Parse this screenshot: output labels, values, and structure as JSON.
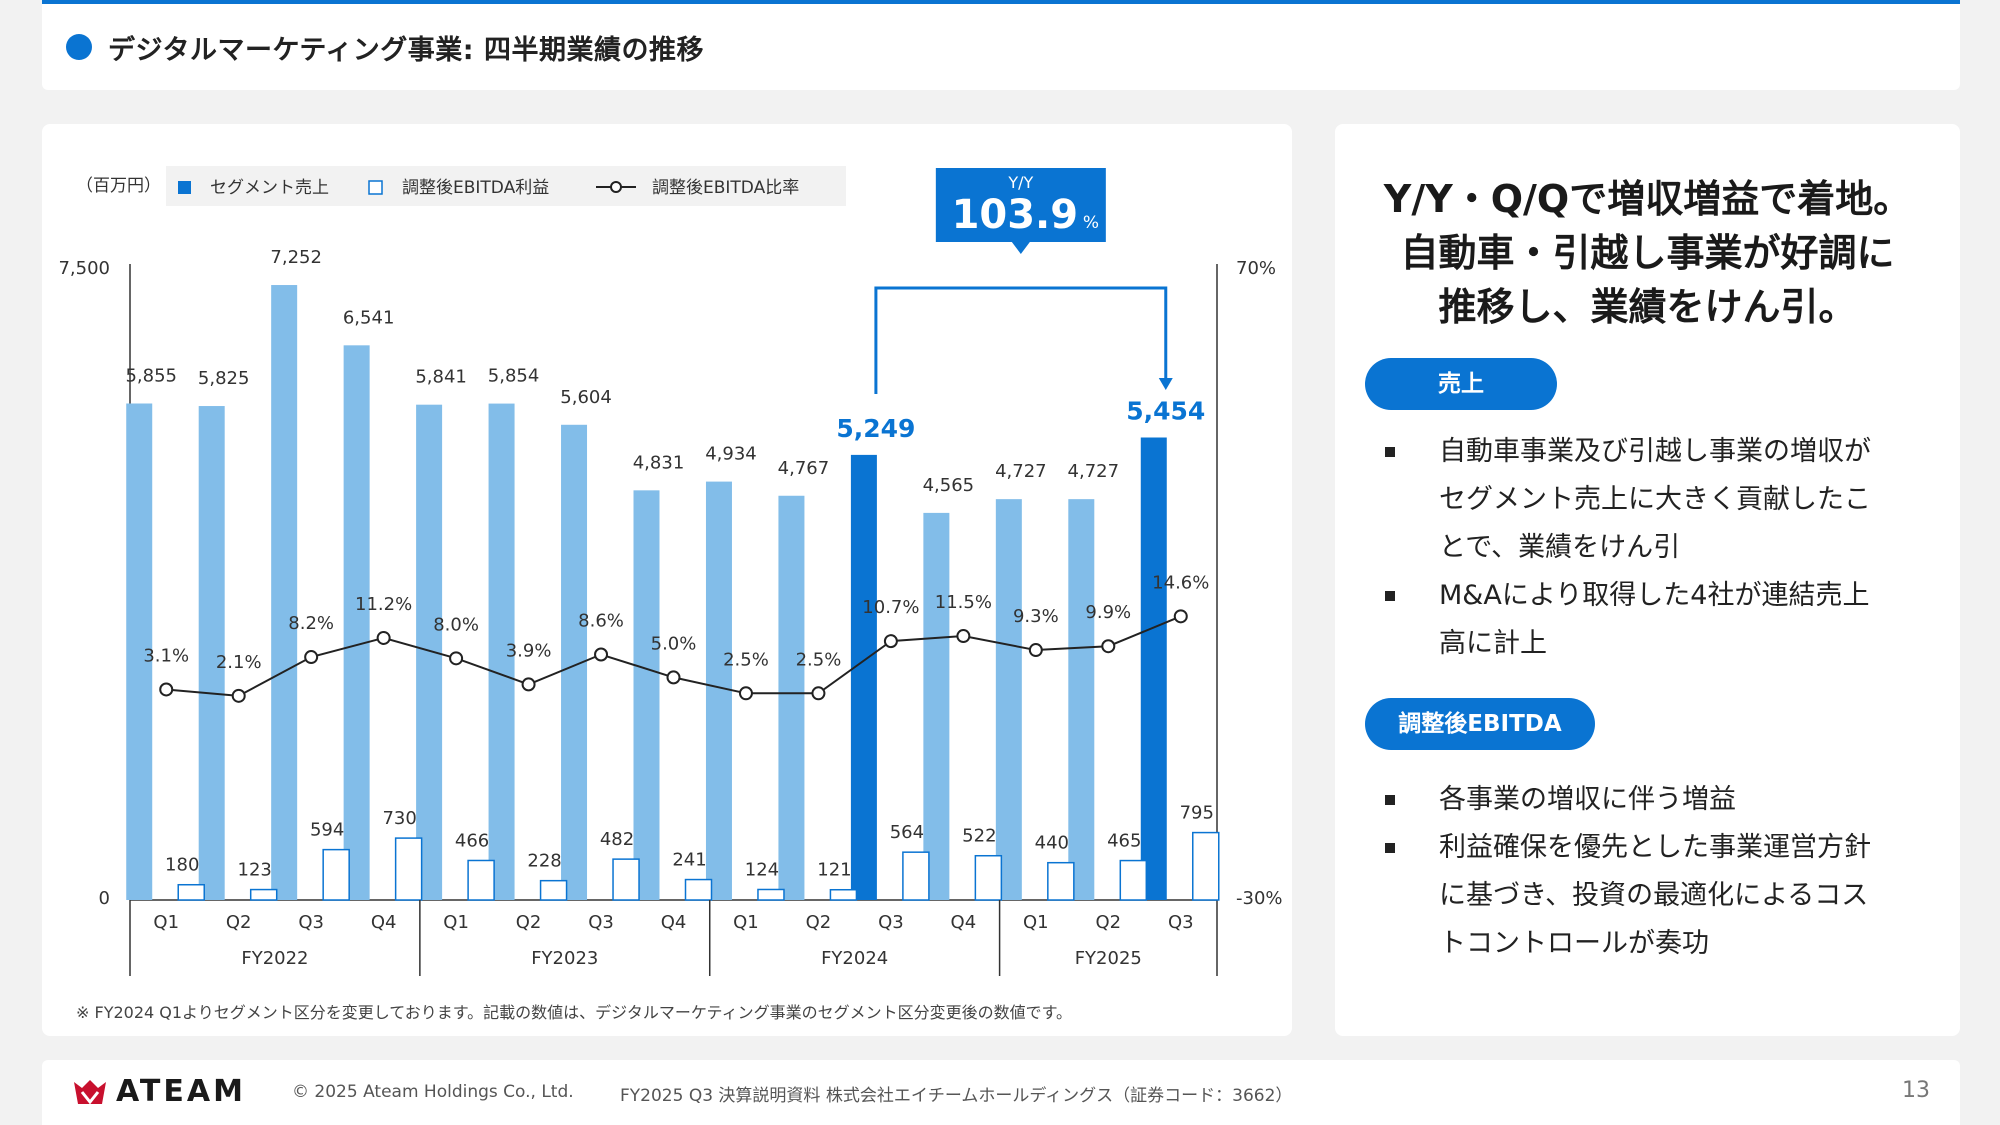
{
  "header": {
    "title": "デジタルマーケティング事業: 四半期業績の推移"
  },
  "chart_data": {
    "type": "bar",
    "unit_label": "（百万円）",
    "legend": [
      "セグメント売上",
      "調整後EBITDA利益",
      "調整後EBITDA比率"
    ],
    "quarters": [
      "Q1",
      "Q2",
      "Q3",
      "Q4",
      "Q1",
      "Q2",
      "Q3",
      "Q4",
      "Q1",
      "Q2",
      "Q3",
      "Q4",
      "Q1",
      "Q2",
      "Q3"
    ],
    "fiscal_years": [
      {
        "label": "FY2022",
        "count": 4
      },
      {
        "label": "FY2023",
        "count": 4
      },
      {
        "label": "FY2024",
        "count": 4
      },
      {
        "label": "FY2025",
        "count": 3
      }
    ],
    "series": [
      {
        "name": "セグメント売上",
        "values": [
          5855,
          5825,
          7252,
          6541,
          5841,
          5854,
          5604,
          4831,
          4934,
          4767,
          5249,
          4565,
          4727,
          4727,
          5454
        ],
        "labels": [
          "5,855",
          "5,825",
          "7,252",
          "6,541",
          "5,841",
          "5,854",
          "5,604",
          "4,831",
          "4,934",
          "4,767",
          "5,249",
          "4,565",
          "4,727",
          "4,727",
          "5,454"
        ],
        "highlight": [
          10,
          14
        ]
      },
      {
        "name": "調整後EBITDA利益",
        "values": [
          180,
          123,
          594,
          730,
          466,
          228,
          482,
          241,
          124,
          121,
          564,
          522,
          440,
          465,
          795
        ]
      },
      {
        "name": "調整後EBITDA比率",
        "values": [
          3.1,
          2.1,
          8.2,
          11.2,
          8.0,
          3.9,
          8.6,
          5.0,
          2.5,
          2.5,
          10.7,
          11.5,
          9.3,
          9.9,
          14.6
        ],
        "labels": [
          "3.1%",
          "2.1%",
          "8.2%",
          "11.2%",
          "8.0%",
          "3.9%",
          "8.6%",
          "5.0%",
          "2.5%",
          "2.5%",
          "10.7%",
          "11.5%",
          "9.3%",
          "9.9%",
          "14.6%"
        ]
      }
    ],
    "y_left": {
      "min": 0,
      "max": 7500,
      "ticks": [
        "0",
        "7,500"
      ]
    },
    "y_right": {
      "min": -30,
      "max": 70,
      "ticks": [
        "-30%",
        "70%"
      ]
    },
    "callout": {
      "label": "Y/Y",
      "value": "103.9",
      "unit": "%"
    },
    "note": "※ FY2024 Q1よりセグメント区分を変更しております。記載の数値は、デジタルマーケティング事業のセグメント区分変更後の数値です。",
    "colors": {
      "bar": "#82bde9",
      "bar_highlight": "#0a74d2",
      "ebitda_stroke": "#0a74d2",
      "line": "#222222"
    }
  },
  "summary": {
    "headline": [
      "Y/Y・Q/Qで増収増益で着地。",
      "自動車・引越し事業が好調に",
      "推移し、業績をけん引。"
    ],
    "sections": [
      {
        "title": "売上",
        "bullets": [
          [
            "自動車事業及び引越し事業の増収が",
            "セグメント売上に大きく貢献したこ",
            "とで、業績をけん引"
          ],
          [
            "M&Aにより取得した4社が連結売上",
            "高に計上"
          ]
        ]
      },
      {
        "title": "調整後EBITDA",
        "bullets": [
          [
            "各事業の増収に伴う増益"
          ],
          [
            "利益確保を優先とした事業運営方針",
            "に基づき、投資の最適化によるコス",
            "トコントロールが奏功"
          ]
        ]
      }
    ]
  },
  "footer": {
    "logo": "ATEAM",
    "copyright": "© 2025 Ateam Holdings Co., Ltd.",
    "document": "FY2025 Q3 決算説明資料 株式会社エイチームホールディングス（証券コード：3662）",
    "page": "13"
  }
}
